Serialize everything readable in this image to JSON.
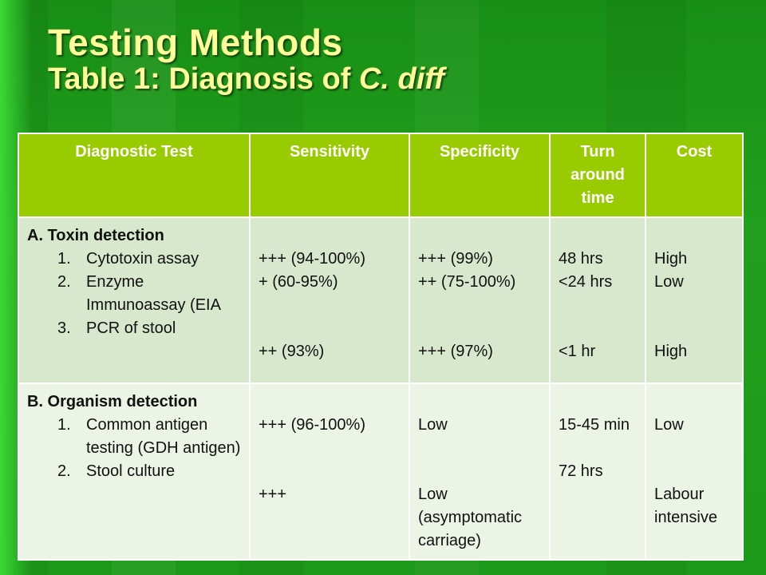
{
  "slide": {
    "title_line1": "Testing Methods",
    "title_line2_prefix": "Table 1:  Diagnosis of ",
    "title_line2_italic": "C. diff"
  },
  "table": {
    "headers": [
      "Diagnostic Test",
      "Sensitivity",
      "Specificity",
      "Turn around time",
      "Cost"
    ],
    "sections": [
      {
        "label": "A.  Toxin detection",
        "items": [
          {
            "num": "1.",
            "text": "Cytotoxin assay"
          },
          {
            "num": "2.",
            "text": "Enzyme Immunoassay (EIA"
          },
          {
            "num": "3.",
            "text": "PCR of stool"
          }
        ],
        "sensitivity": [
          "+++ (94-100%)",
          "+ (60-95%)",
          "++ (93%)"
        ],
        "specificity": [
          "+++ (99%)",
          "++ (75-100%)",
          "+++ (97%)"
        ],
        "turnaround": [
          "48 hrs",
          "<24 hrs",
          "<1 hr"
        ],
        "cost": [
          "High",
          "Low",
          "High"
        ]
      },
      {
        "label": "B.  Organism detection",
        "items": [
          {
            "num": "1.",
            "text": "Common antigen testing (GDH antigen)"
          },
          {
            "num": "2.",
            "text": "Stool culture"
          }
        ],
        "sensitivity": [
          "+++ (96-100%)",
          "+++"
        ],
        "specificity": [
          "Low",
          "Low (asymptomatic carriage)"
        ],
        "turnaround": [
          "15-45 min",
          "72 hrs"
        ],
        "cost": [
          "Low",
          "Labour intensive"
        ]
      }
    ]
  }
}
